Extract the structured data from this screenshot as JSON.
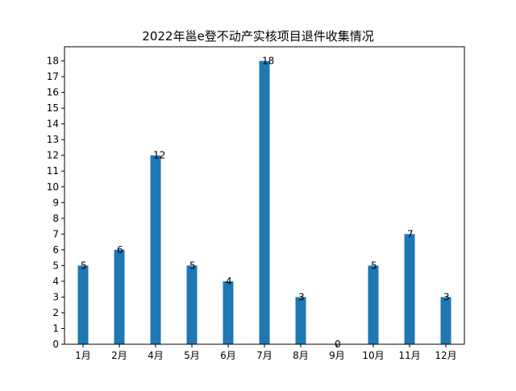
{
  "chart_data": {
    "type": "bar",
    "title": "2022年邕e登不动产实核项目退件收集情况",
    "xlabel": "",
    "ylabel": "",
    "categories": [
      "1月",
      "2月",
      "4月",
      "5月",
      "6月",
      "7月",
      "8月",
      "9月",
      "10月",
      "11月",
      "12月"
    ],
    "values": [
      5,
      6,
      12,
      5,
      4,
      18,
      3,
      0,
      5,
      7,
      3
    ],
    "data_labels": [
      "5",
      "6",
      "12",
      "5",
      "4",
      "18",
      "3",
      "0",
      "5",
      "7",
      "3"
    ],
    "y_ticks": [
      0,
      1,
      2,
      3,
      4,
      5,
      6,
      7,
      8,
      9,
      10,
      11,
      12,
      13,
      14,
      15,
      16,
      17,
      18
    ],
    "ylim": [
      0,
      18.9
    ],
    "bar_color": "#1f77b4",
    "grid": false,
    "legend": "none"
  }
}
